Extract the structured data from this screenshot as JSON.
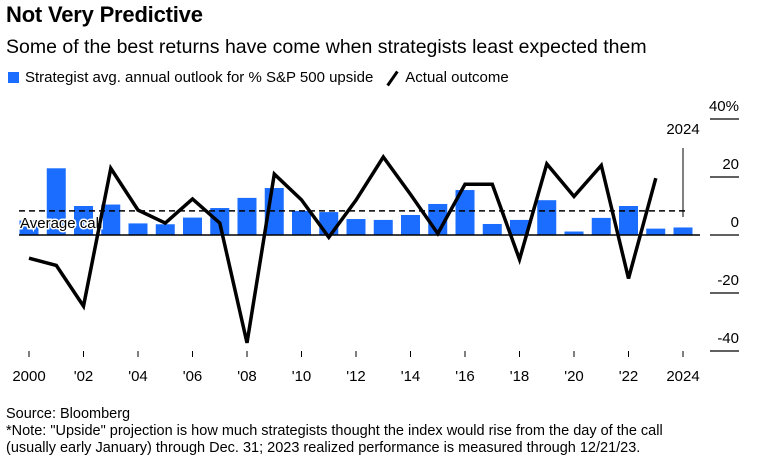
{
  "chart_data": {
    "type": "bar",
    "title": "Not Very Predictive",
    "subtitle": "Some of the best returns have come when strategists least expected them",
    "xlabel": "",
    "ylabel": "",
    "x": [
      2000,
      2001,
      2002,
      2003,
      2004,
      2005,
      2006,
      2007,
      2008,
      2009,
      2010,
      2011,
      2012,
      2013,
      2014,
      2015,
      2016,
      2017,
      2018,
      2019,
      2020,
      2021,
      2022,
      2023,
      2024
    ],
    "series": [
      {
        "name": "Strategist avg. annual outlook for % S&P 500 upside",
        "type": "bar",
        "color": "#1a6dff",
        "values": [
          5,
          23,
          10,
          10.5,
          4,
          3.7,
          6,
          9.3,
          12.8,
          16.2,
          8.3,
          7.9,
          5.5,
          5.2,
          6.9,
          10.7,
          15.5,
          3.8,
          5.2,
          12,
          1.2,
          5.9,
          10,
          2.2,
          2.6
        ]
      },
      {
        "name": "Actual outcome",
        "type": "line",
        "color": "#000000",
        "values": [
          -8,
          -10.5,
          -24.5,
          23,
          8.6,
          4.1,
          12.4,
          4.1,
          -37.2,
          21,
          12.1,
          -0.8,
          12,
          26.9,
          14,
          0.5,
          17.5,
          17.5,
          -8.4,
          24.5,
          13.3,
          24,
          -15,
          19.6,
          null
        ]
      }
    ],
    "reference_lines": [
      {
        "name": "Average call",
        "value": 8.3,
        "style": "dashed"
      }
    ],
    "annotations": [
      {
        "label": "2024",
        "x": 2024
      }
    ],
    "xticks": [
      2000,
      2002,
      2004,
      2006,
      2008,
      2010,
      2012,
      2014,
      2016,
      2018,
      2020,
      2022,
      2024
    ],
    "xtick_labels": [
      "2000",
      "'02",
      "'04",
      "'06",
      "'08",
      "'10",
      "'12",
      "'14",
      "'16",
      "'18",
      "'20",
      "'22",
      "2024"
    ],
    "yticks": [
      40,
      20,
      0,
      -20,
      -40
    ],
    "ytick_labels": [
      "40%",
      "20",
      "0",
      "-20",
      "-40"
    ],
    "ylim": [
      -40,
      40
    ],
    "grid": false,
    "legend": "top-left",
    "yaxis_side": "right"
  },
  "legend": {
    "bar_label": "Strategist avg. annual outlook for % S&P 500 upside",
    "line_label": "Actual outcome"
  },
  "reference_label": "Average call",
  "annotation_label": "2024",
  "footer": {
    "source": "Source: Bloomberg",
    "note_line1": "*Note: \"Upside\" projection is how much strategists thought the index would rise from the day of the call",
    "note_line2": "(usually early January) through Dec. 31; 2023 realized performance is measured through 12/21/23."
  }
}
